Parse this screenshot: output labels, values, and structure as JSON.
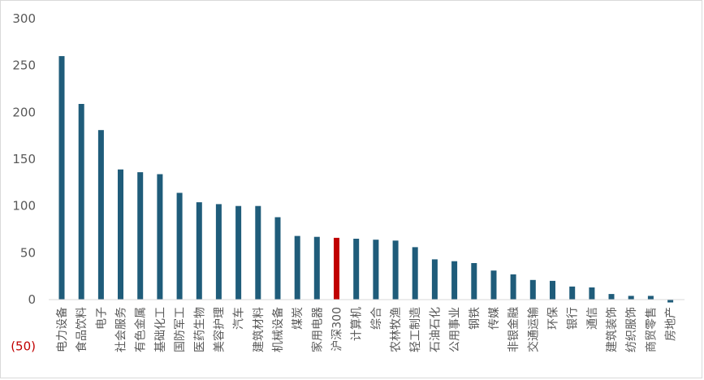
{
  "chart_data": {
    "type": "bar",
    "title": "",
    "xlabel": "",
    "ylabel": "",
    "ylim": [
      -50,
      300
    ],
    "yticks": [
      300,
      250,
      200,
      150,
      100,
      50,
      0,
      -50
    ],
    "ytick_labels": [
      "300",
      "250",
      "200",
      "150",
      "100",
      "50",
      "0",
      "(50)"
    ],
    "grid": false,
    "legend": "none",
    "colors": {
      "default": "#1f5c7a",
      "highlight": "#c00000",
      "negative_label": "#c00000"
    },
    "highlight_category": "沪深300",
    "categories": [
      "电力设备",
      "食品饮料",
      "电子",
      "社会服务",
      "有色金属",
      "基础化工",
      "国防军工",
      "医药生物",
      "美容护理",
      "汽车",
      "建筑材料",
      "机械设备",
      "煤炭",
      "家用电器",
      "沪深300",
      "计算机",
      "综合",
      "农林牧渔",
      "轻工制造",
      "石油石化",
      "公用事业",
      "钢铁",
      "传媒",
      "非银金融",
      "交通运输",
      "环保",
      "银行",
      "通信",
      "建筑装饰",
      "纺织服饰",
      "商贸零售",
      "房地产"
    ],
    "values": [
      260,
      209,
      181,
      139,
      136,
      134,
      114,
      104,
      102,
      100,
      100,
      88,
      68,
      67,
      66,
      65,
      64,
      63,
      56,
      43,
      41,
      39,
      31,
      27,
      21,
      20,
      14,
      13,
      6,
      4,
      4,
      -3
    ]
  }
}
